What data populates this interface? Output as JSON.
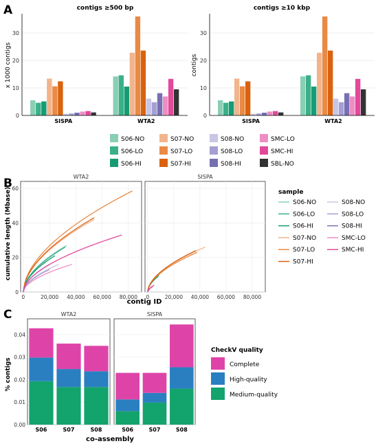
{
  "panel_labels": [
    "A",
    "B",
    "C"
  ],
  "colors": {
    "S06-NO": "#88cfb4",
    "S06-LO": "#3bb088",
    "S06-HI": "#169c74",
    "S07-NO": "#f2b48c",
    "S07-LO": "#e98a45",
    "S07-HI": "#d9620f",
    "S08-NO": "#c8c6e6",
    "S08-LO": "#a49fd3",
    "S08-HI": "#7670b3",
    "SMC-LO": "#ee8dc4",
    "SMC-HI": "#e2499a",
    "SBL-NO": "#333333",
    "Complete": "#de44a8",
    "High-quality": "#2a7fc1",
    "Medium-quality": "#13a36d"
  },
  "legend_A": {
    "columns": [
      [
        "S06-NO",
        "S06-LO",
        "S06-HI"
      ],
      [
        "S07-NO",
        "S07-LO",
        "S07-HI"
      ],
      [
        "S08-NO",
        "S08-LO",
        "S08-HI"
      ],
      [
        "SMC-LO",
        "SMC-HI",
        "SBL-NO"
      ]
    ]
  },
  "legend_B": {
    "title": "sample",
    "col1": [
      "S06-NO",
      "S06-LO",
      "S06-HI",
      "S07-NO",
      "S07-LO",
      "S07-HI"
    ],
    "col2": [
      "S08-NO",
      "S08-LO",
      "S08-HI",
      "SMC-LO",
      "SMC-HI"
    ]
  },
  "legend_C": {
    "title": "CheckV quality",
    "items": [
      "Complete",
      "High-quality",
      "Medium-quality"
    ]
  },
  "chart_data": [
    {
      "type": "bar",
      "title": "contigs ≥500 bp",
      "ylabel": "x 1000 contigs",
      "xlabel": "",
      "ylim": [
        0,
        37
      ],
      "yticks": [
        0,
        10,
        20,
        30
      ],
      "categories": [
        "SISPA",
        "WTA2"
      ],
      "series_order": [
        "S06-NO",
        "S06-LO",
        "S06-HI",
        "S07-NO",
        "S07-LO",
        "S07-HI",
        "S08-NO",
        "S08-LO",
        "S08-HI",
        "SMC-LO",
        "SMC-HI",
        "SBL-NO"
      ],
      "values": {
        "SISPA": [
          5.5,
          4.6,
          5.1,
          13.4,
          10.6,
          12.4,
          0.6,
          0.7,
          1.0,
          1.4,
          1.6,
          1.1
        ],
        "WTA2": [
          14.2,
          14.6,
          10.5,
          22.8,
          36.0,
          23.6,
          6.1,
          4.8,
          8.1,
          6.9,
          13.3,
          9.5
        ]
      },
      "grid": true
    },
    {
      "type": "bar",
      "title": "contigs ≥10 kbp",
      "ylabel": "contigs",
      "xlabel": "",
      "ylim": [
        0,
        37
      ],
      "yticks": [
        0,
        10,
        20,
        30
      ],
      "categories": [
        "SISPA",
        "WTA2"
      ],
      "series_order": [
        "S06-NO",
        "S06-LO",
        "S06-HI",
        "S07-NO",
        "S07-LO",
        "S07-HI",
        "S08-NO",
        "S08-LO",
        "S08-HI",
        "SMC-LO",
        "SMC-HI",
        "SBL-NO"
      ],
      "values": {
        "SISPA": [
          5.5,
          4.6,
          5.1,
          13.4,
          10.6,
          12.4,
          0.6,
          0.7,
          1.0,
          1.4,
          1.6,
          1.1
        ],
        "WTA2": [
          14.2,
          14.6,
          10.5,
          22.8,
          36.0,
          23.6,
          6.1,
          4.8,
          8.1,
          6.9,
          13.3,
          9.5
        ]
      },
      "grid": true
    },
    {
      "type": "line",
      "xlabel": "contig ID",
      "ylabel": "cumulative length (Mbase)",
      "xlim": [
        -2000,
        90000
      ],
      "ylim": [
        0,
        64
      ],
      "xticks": [
        0,
        20000,
        40000,
        60000,
        80000
      ],
      "xtick_labels": [
        "0",
        "20,000",
        "40,000",
        "60,000",
        "80,000"
      ],
      "yticks": [
        0,
        20,
        40,
        60
      ],
      "facets": [
        {
          "label": "WTA2",
          "series": [
            {
              "name": "S06-NO",
              "end_x": 33000,
              "end_y": 27
            },
            {
              "name": "S06-LO",
              "end_x": 32000,
              "end_y": 26
            },
            {
              "name": "S06-HI",
              "end_x": 24000,
              "end_y": 21
            },
            {
              "name": "S07-NO",
              "end_x": 54000,
              "end_y": 42
            },
            {
              "name": "S07-LO",
              "end_x": 83000,
              "end_y": 58.5
            },
            {
              "name": "S07-HI",
              "end_x": 54000,
              "end_y": 43
            },
            {
              "name": "S08-NO",
              "end_x": 27000,
              "end_y": 16
            },
            {
              "name": "S08-LO",
              "end_x": 20000,
              "end_y": 13
            },
            {
              "name": "S08-HI",
              "end_x": 20000,
              "end_y": 16
            },
            {
              "name": "SMC-LO",
              "end_x": 37000,
              "end_y": 16
            },
            {
              "name": "SMC-HI",
              "end_x": 75000,
              "end_y": 33
            }
          ]
        },
        {
          "label": "SISPA",
          "series": [
            {
              "name": "S06-NO",
              "end_x": 9000,
              "end_y": 10
            },
            {
              "name": "S06-LO",
              "end_x": 8000,
              "end_y": 9
            },
            {
              "name": "S06-HI",
              "end_x": 8500,
              "end_y": 9.5
            },
            {
              "name": "S07-NO",
              "end_x": 44000,
              "end_y": 26
            },
            {
              "name": "S07-LO",
              "end_x": 38000,
              "end_y": 23
            },
            {
              "name": "S07-HI",
              "end_x": 37000,
              "end_y": 24
            },
            {
              "name": "S08-NO",
              "end_x": 1000,
              "end_y": 1
            },
            {
              "name": "S08-LO",
              "end_x": 1200,
              "end_y": 1.2
            },
            {
              "name": "S08-HI",
              "end_x": 1500,
              "end_y": 1.5
            },
            {
              "name": "SMC-LO",
              "end_x": 4000,
              "end_y": 3
            },
            {
              "name": "SMC-HI",
              "end_x": 5000,
              "end_y": 4
            }
          ]
        }
      ],
      "grid": true
    },
    {
      "type": "bar",
      "stacked": true,
      "xlabel": "co-assembly",
      "ylabel": "% contigs",
      "ylim": [
        0,
        0.047
      ],
      "yticks": [
        0,
        0.01,
        0.02,
        0.03,
        0.04
      ],
      "ytick_labels": [
        "0.00",
        "0.01",
        "0.02",
        "0.03",
        "0.04"
      ],
      "categories": [
        "S06",
        "S07",
        "S08"
      ],
      "series_order": [
        "Medium-quality",
        "High-quality",
        "Complete"
      ],
      "facets": [
        {
          "label": "WTA2",
          "values": {
            "Medium-quality": [
              0.0193,
              0.0167,
              0.0167
            ],
            "High-quality": [
              0.0105,
              0.008,
              0.007
            ],
            "Complete": [
              0.013,
              0.0113,
              0.0113
            ]
          }
        },
        {
          "label": "SISPA",
          "values": {
            "Medium-quality": [
              0.006,
              0.0098,
              0.016
            ],
            "High-quality": [
              0.0052,
              0.0043,
              0.0095
            ],
            "Complete": [
              0.0118,
              0.0089,
              0.019
            ]
          }
        }
      ],
      "grid": true
    }
  ]
}
